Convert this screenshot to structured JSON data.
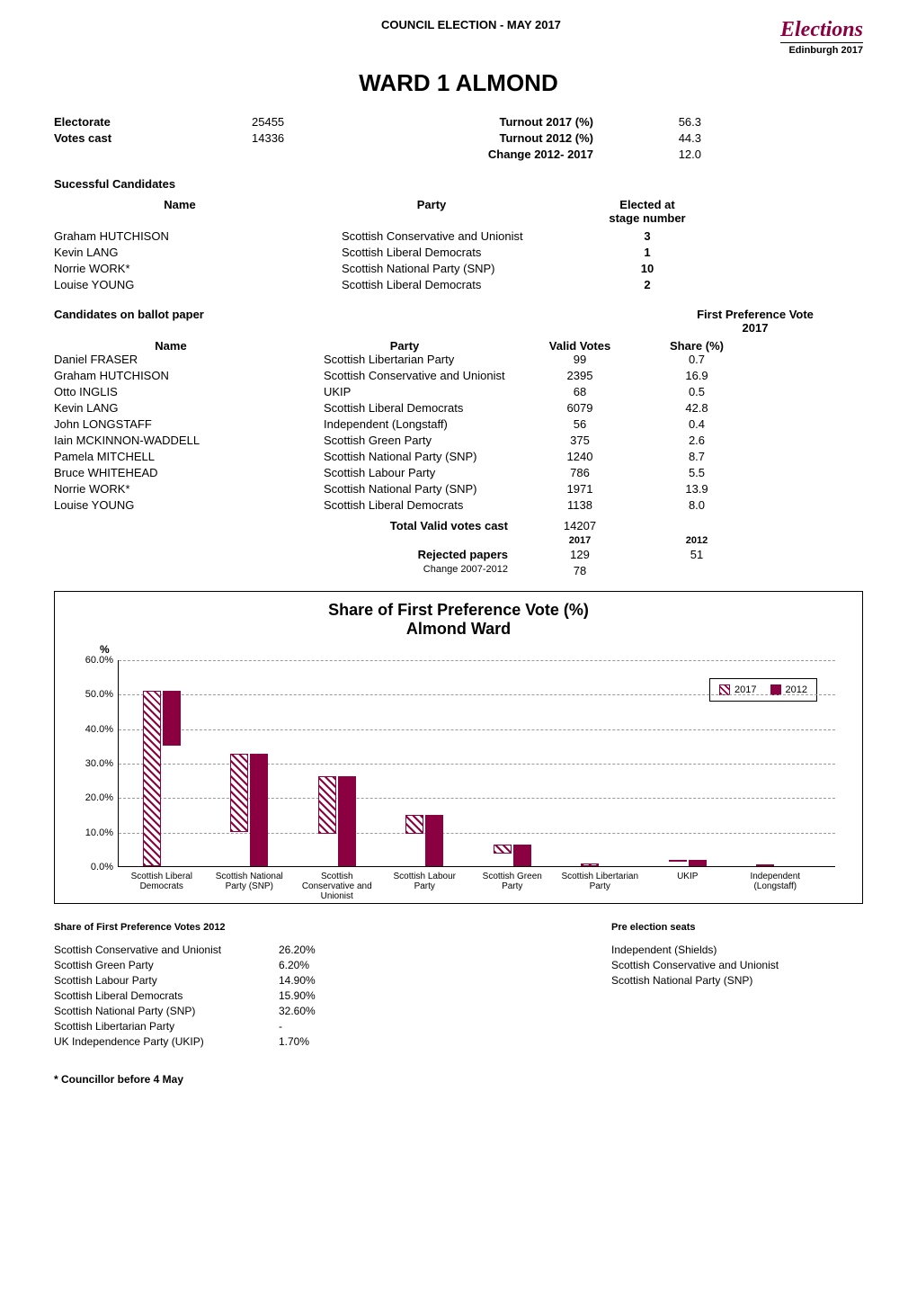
{
  "header": {
    "council_title": "COUNCIL ELECTION - MAY 2017",
    "logo_main": "Elections",
    "logo_sub": "Edinburgh 2017"
  },
  "ward_title": "WARD 1 ALMOND",
  "stats": {
    "electorate_label": "Electorate",
    "electorate_value": "25455",
    "votes_cast_label": "Votes cast",
    "votes_cast_value": "14336",
    "turnout_2017_label": "Turnout 2017 (%)",
    "turnout_2017_value": "56.3",
    "turnout_2012_label": "Turnout 2012 (%)",
    "turnout_2012_value": "44.3",
    "change_label": "Change 2012- 2017",
    "change_value": "12.0"
  },
  "successful": {
    "heading": "Sucessful Candidates",
    "col_name": "Name",
    "col_party": "Party",
    "col_stage_line1": "Elected at",
    "col_stage_line2": "stage number",
    "rows": [
      {
        "name": "Graham HUTCHISON",
        "party": "Scottish Conservative and Unionist",
        "stage": "3"
      },
      {
        "name": "Kevin LANG",
        "party": "Scottish Liberal Democrats",
        "stage": "1"
      },
      {
        "name": "Norrie WORK*",
        "party": "Scottish National Party (SNP)",
        "stage": "10"
      },
      {
        "name": "Louise YOUNG",
        "party": "Scottish Liberal Democrats",
        "stage": "2"
      }
    ]
  },
  "ballot": {
    "heading": "Candidates on ballot paper",
    "fp_label_line1": "First Preference Vote",
    "fp_label_line2": "2017",
    "col_name": "Name",
    "col_party": "Party",
    "col_votes": "Valid Votes",
    "col_share": "Share (%)",
    "rows": [
      {
        "name": "Daniel FRASER",
        "party": "Scottish Libertarian Party",
        "votes": "99",
        "share": "0.7"
      },
      {
        "name": "Graham HUTCHISON",
        "party": "Scottish Conservative and Unionist",
        "votes": "2395",
        "share": "16.9"
      },
      {
        "name": "Otto INGLIS",
        "party": "UKIP",
        "votes": "68",
        "share": "0.5"
      },
      {
        "name": "Kevin LANG",
        "party": "Scottish Liberal Democrats",
        "votes": "6079",
        "share": "42.8"
      },
      {
        "name": "John LONGSTAFF",
        "party": "Independent (Longstaff)",
        "votes": "56",
        "share": "0.4"
      },
      {
        "name": "Iain MCKINNON-WADDELL",
        "party": "Scottish Green Party",
        "votes": "375",
        "share": "2.6"
      },
      {
        "name": "Pamela MITCHELL",
        "party": "Scottish National Party (SNP)",
        "votes": "1240",
        "share": "8.7"
      },
      {
        "name": "Bruce WHITEHEAD",
        "party": "Scottish Labour Party",
        "votes": "786",
        "share": "5.5"
      },
      {
        "name": "Norrie WORK*",
        "party": "Scottish National Party (SNP)",
        "votes": "1971",
        "share": "13.9"
      },
      {
        "name": "Louise YOUNG",
        "party": "Scottish Liberal Democrats",
        "votes": "1138",
        "share": "8.0"
      }
    ],
    "total_label": "Total Valid votes cast",
    "total_value": "14207",
    "year_2017": "2017",
    "year_2012": "2012",
    "rejected_label": "Rejected papers",
    "rejected_2017": "129",
    "rejected_2012": "51",
    "change_label": "Change 2007-2012",
    "change_value": "78"
  },
  "chart": {
    "title_line1": "Share of First Preference Vote (%)",
    "title_line2": "Almond Ward",
    "pct_label": "%",
    "ylim": [
      0,
      60
    ],
    "ytick_step": 10,
    "yticks": [
      "0.0%",
      "10.0%",
      "20.0%",
      "30.0%",
      "40.0%",
      "50.0%",
      "60.0%"
    ],
    "background_color": "#ffffff",
    "grid_color": "#999999",
    "bar_2017_fill": "#ffffff",
    "bar_2017_stroke": "#8b0040",
    "bar_2012_fill": "#8b0040",
    "legend_2017": "2017",
    "legend_2012": "2012",
    "categories": [
      "Scottish Liberal Democrats",
      "Scottish National Party (SNP)",
      "Scottish Conservative and Unionist",
      "Scottish Labour Party",
      "Scottish Green Party",
      "Scottish Libertarian Party",
      "UKIP",
      "Independent (Longstaff)"
    ],
    "values_2017": [
      50.8,
      22.6,
      16.9,
      5.5,
      2.6,
      0.7,
      0.5,
      0.4
    ],
    "values_2012": [
      15.9,
      32.6,
      26.2,
      14.9,
      6.2,
      0,
      1.7,
      0
    ]
  },
  "share_2012": {
    "heading": "Share of First Preference Votes 2012",
    "rows": [
      {
        "party": "Scottish Conservative and Unionist",
        "value": "26.20%"
      },
      {
        "party": "Scottish Green Party",
        "value": "6.20%"
      },
      {
        "party": "Scottish Labour Party",
        "value": "14.90%"
      },
      {
        "party": "Scottish Liberal Democrats",
        "value": "15.90%"
      },
      {
        "party": "Scottish National Party (SNP)",
        "value": "32.60%"
      },
      {
        "party": "Scottish Libertarian Party",
        "value": "-"
      },
      {
        "party": "UK Independence Party (UKIP)",
        "value": "1.70%"
      }
    ]
  },
  "pre_election": {
    "heading": "Pre election seats",
    "rows": [
      "Independent (Shields)",
      "Scottish Conservative and Unionist",
      "Scottish National Party (SNP)"
    ]
  },
  "footnote": "* Councillor before 4 May"
}
